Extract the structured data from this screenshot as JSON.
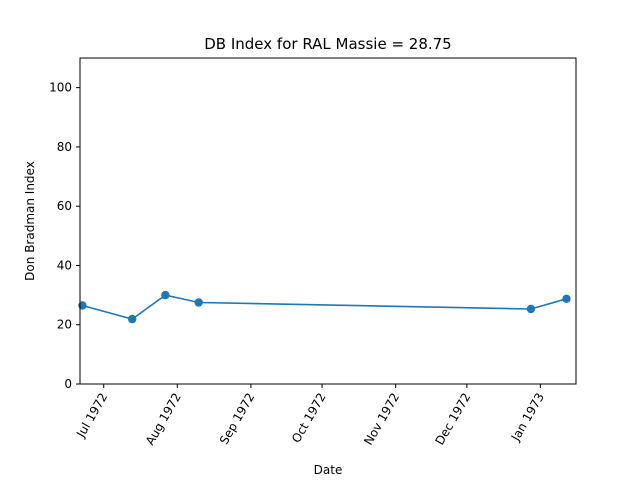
{
  "chart_data": {
    "type": "line",
    "title": "DB Index for RAL Massie = 28.75",
    "xlabel": "Date",
    "ylabel": "Don Bradman Index",
    "x_tick_labels": [
      "Jul 1972",
      "Aug 1972",
      "Sep 1972",
      "Oct 1972",
      "Nov 1972",
      "Dec 1972",
      "Jan 1973"
    ],
    "x_tick_dates": [
      "1972-07-01",
      "1972-08-01",
      "1972-09-01",
      "1972-10-01",
      "1972-11-01",
      "1972-12-01",
      "1973-01-01"
    ],
    "y_ticks": [
      0,
      20,
      40,
      60,
      80,
      100
    ],
    "ylim": [
      0,
      110
    ],
    "xlim": [
      "1972-06-21",
      "1973-01-16"
    ],
    "grid": false,
    "series": [
      {
        "color": "#1f77b4",
        "x": [
          "1972-06-22",
          "1972-07-13",
          "1972-07-27",
          "1972-08-10",
          "1972-12-28",
          "1973-01-12"
        ],
        "y": [
          26.5,
          21.9,
          30.0,
          27.5,
          25.3,
          28.75
        ]
      }
    ]
  }
}
